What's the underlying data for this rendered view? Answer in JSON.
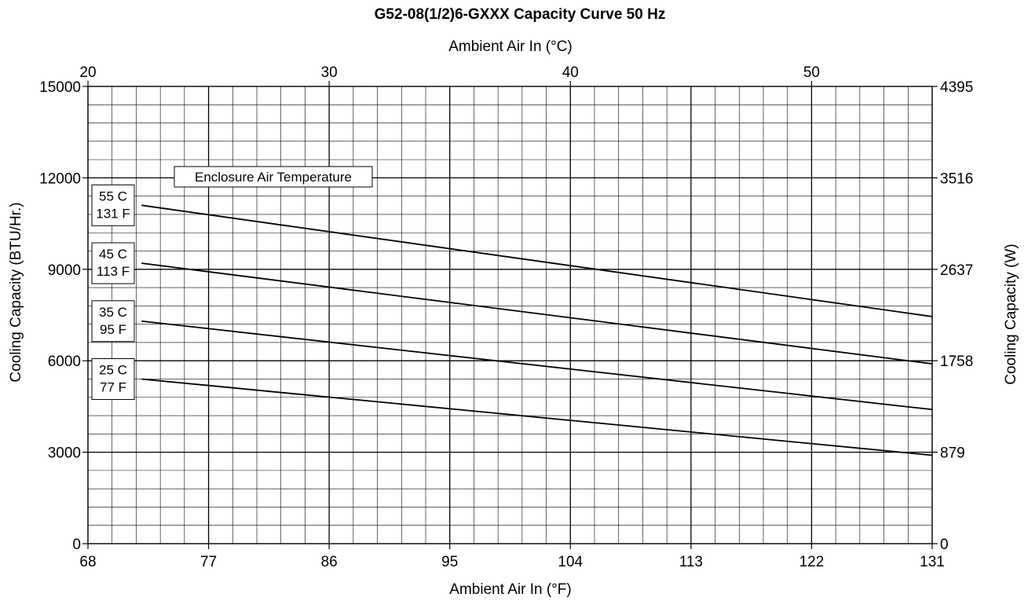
{
  "chart_data": {
    "type": "line",
    "title": "G52-08(1/2)6-GXXX Capacity Curve 50 Hz",
    "xlabel": "Ambient Air In (°F)",
    "x2label": "Ambient Air In (°C)",
    "ylabel": "Cooling Capacity (BTU/Hr.)",
    "y2label": "Cooling Capacity (W)",
    "xlim": [
      68,
      131
    ],
    "ylim": [
      0,
      15000
    ],
    "x2lim": [
      20,
      55
    ],
    "x_ticks": [
      "68",
      "77",
      "86",
      "95",
      "104",
      "113",
      "122",
      "131"
    ],
    "x2_ticks": [
      {
        "value": 20,
        "label": "20"
      },
      {
        "value": 30,
        "label": "30"
      },
      {
        "value": 40,
        "label": "40"
      },
      {
        "value": 50,
        "label": "50"
      }
    ],
    "y_ticks": [
      "0",
      "3000",
      "6000",
      "9000",
      "12000",
      "15000"
    ],
    "y2_ticks": [
      "0",
      "879",
      "1758",
      "2637",
      "3516",
      "4395"
    ],
    "grid": true,
    "legend_title": "Enclosure Air Temperature",
    "series": [
      {
        "name": "55 C 131 F",
        "label_lines": [
          "55 C",
          "131 F"
        ],
        "x": [
          72,
          131
        ],
        "values": [
          11100,
          7450
        ]
      },
      {
        "name": "45 C 113 F",
        "label_lines": [
          "45 C",
          "113 F"
        ],
        "x": [
          72,
          131
        ],
        "values": [
          9200,
          5900
        ]
      },
      {
        "name": "35 C 95 F",
        "label_lines": [
          "35 C",
          "95 F"
        ],
        "x": [
          72,
          131
        ],
        "values": [
          7300,
          4400
        ]
      },
      {
        "name": "25 C 77 F",
        "label_lines": [
          "25 C",
          "77 F"
        ],
        "x": [
          72,
          131
        ],
        "values": [
          5400,
          2900
        ]
      }
    ]
  }
}
